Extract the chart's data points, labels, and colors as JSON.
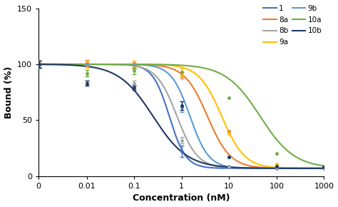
{
  "title": "",
  "xlabel": "Concentration (nM)",
  "ylabel": "Bound (%)",
  "ylim": [
    0,
    150
  ],
  "yticks": [
    0,
    50,
    100,
    150
  ],
  "xtick_labels": [
    "0",
    "0.01",
    "0.1",
    "1",
    "10",
    "100",
    "1000"
  ],
  "xtick_vals_log": [
    0.001,
    0.01,
    0.1,
    1,
    10,
    100,
    1000
  ],
  "background_color": "#ffffff",
  "series": [
    {
      "label": "1",
      "color": "#4472C4",
      "ic50": 0.55,
      "hill": 2.5,
      "bottom": 7,
      "top": 100,
      "x_data": [
        0.001,
        0.01,
        0.1,
        1,
        10,
        100,
        1000
      ],
      "y_data": [
        100,
        100,
        100,
        22,
        9,
        7,
        7
      ],
      "y_err": [
        3,
        0,
        0,
        5,
        0,
        0,
        0
      ]
    },
    {
      "label": "8a",
      "color": "#ED7D31",
      "ic50": 3.5,
      "hill": 1.8,
      "bottom": 7,
      "top": 100,
      "x_data": [
        0.001,
        0.01,
        0.1,
        1,
        10,
        100,
        1000
      ],
      "y_data": [
        100,
        101,
        99,
        90,
        40,
        11,
        8
      ],
      "y_err": [
        3,
        3,
        3,
        3,
        0,
        0,
        0
      ]
    },
    {
      "label": "8b",
      "color": "#A5A5A5",
      "ic50": 0.8,
      "hill": 2.0,
      "bottom": 7,
      "top": 100,
      "x_data": [
        0.001,
        0.01,
        0.1,
        1,
        10,
        100,
        1000
      ],
      "y_data": [
        100,
        83,
        83,
        32,
        9,
        7,
        7
      ],
      "y_err": [
        3,
        2,
        2,
        3,
        0,
        0,
        0
      ]
    },
    {
      "label": "9a",
      "color": "#FFC000",
      "ic50": 7.0,
      "hill": 1.8,
      "bottom": 7,
      "top": 100,
      "x_data": [
        0.001,
        0.01,
        0.1,
        1,
        10,
        100,
        1000
      ],
      "y_data": [
        100,
        100,
        100,
        93,
        38,
        11,
        8
      ],
      "y_err": [
        3,
        3,
        3,
        3,
        0,
        0,
        0
      ]
    },
    {
      "label": "9b",
      "color": "#5B9BD5",
      "ic50": 1.5,
      "hill": 2.2,
      "bottom": 7,
      "top": 100,
      "x_data": [
        0.001,
        0.01,
        0.1,
        1,
        10,
        100,
        1000
      ],
      "y_data": [
        100,
        100,
        100,
        62,
        17,
        9,
        8
      ],
      "y_err": [
        3,
        0,
        0,
        5,
        0,
        0,
        0
      ]
    },
    {
      "label": "10a",
      "color": "#70AD47",
      "ic50": 45.0,
      "hill": 1.2,
      "bottom": 7,
      "top": 100,
      "x_data": [
        0.001,
        0.01,
        0.1,
        1,
        10,
        100,
        1000
      ],
      "y_data": [
        100,
        92,
        94,
        93,
        70,
        20,
        9
      ],
      "y_err": [
        3,
        3,
        3,
        0,
        0,
        0,
        0
      ]
    },
    {
      "label": "10b",
      "color": "#1F3864",
      "ic50": 0.25,
      "hill": 1.2,
      "bottom": 7,
      "top": 100,
      "x_data": [
        0.001,
        0.01,
        0.1,
        1,
        10,
        100,
        1000
      ],
      "y_data": [
        100,
        83,
        79,
        63,
        17,
        9,
        8
      ],
      "y_err": [
        3,
        2,
        2,
        4,
        0,
        0,
        0
      ]
    }
  ],
  "legend_order": [
    0,
    1,
    2,
    3,
    4,
    5,
    6
  ],
  "legend_ncol": 2,
  "legend_labels_col1": [
    "1",
    "8b",
    "9b",
    "10b"
  ],
  "legend_labels_col2": [
    "8a",
    "9a",
    "10a"
  ]
}
